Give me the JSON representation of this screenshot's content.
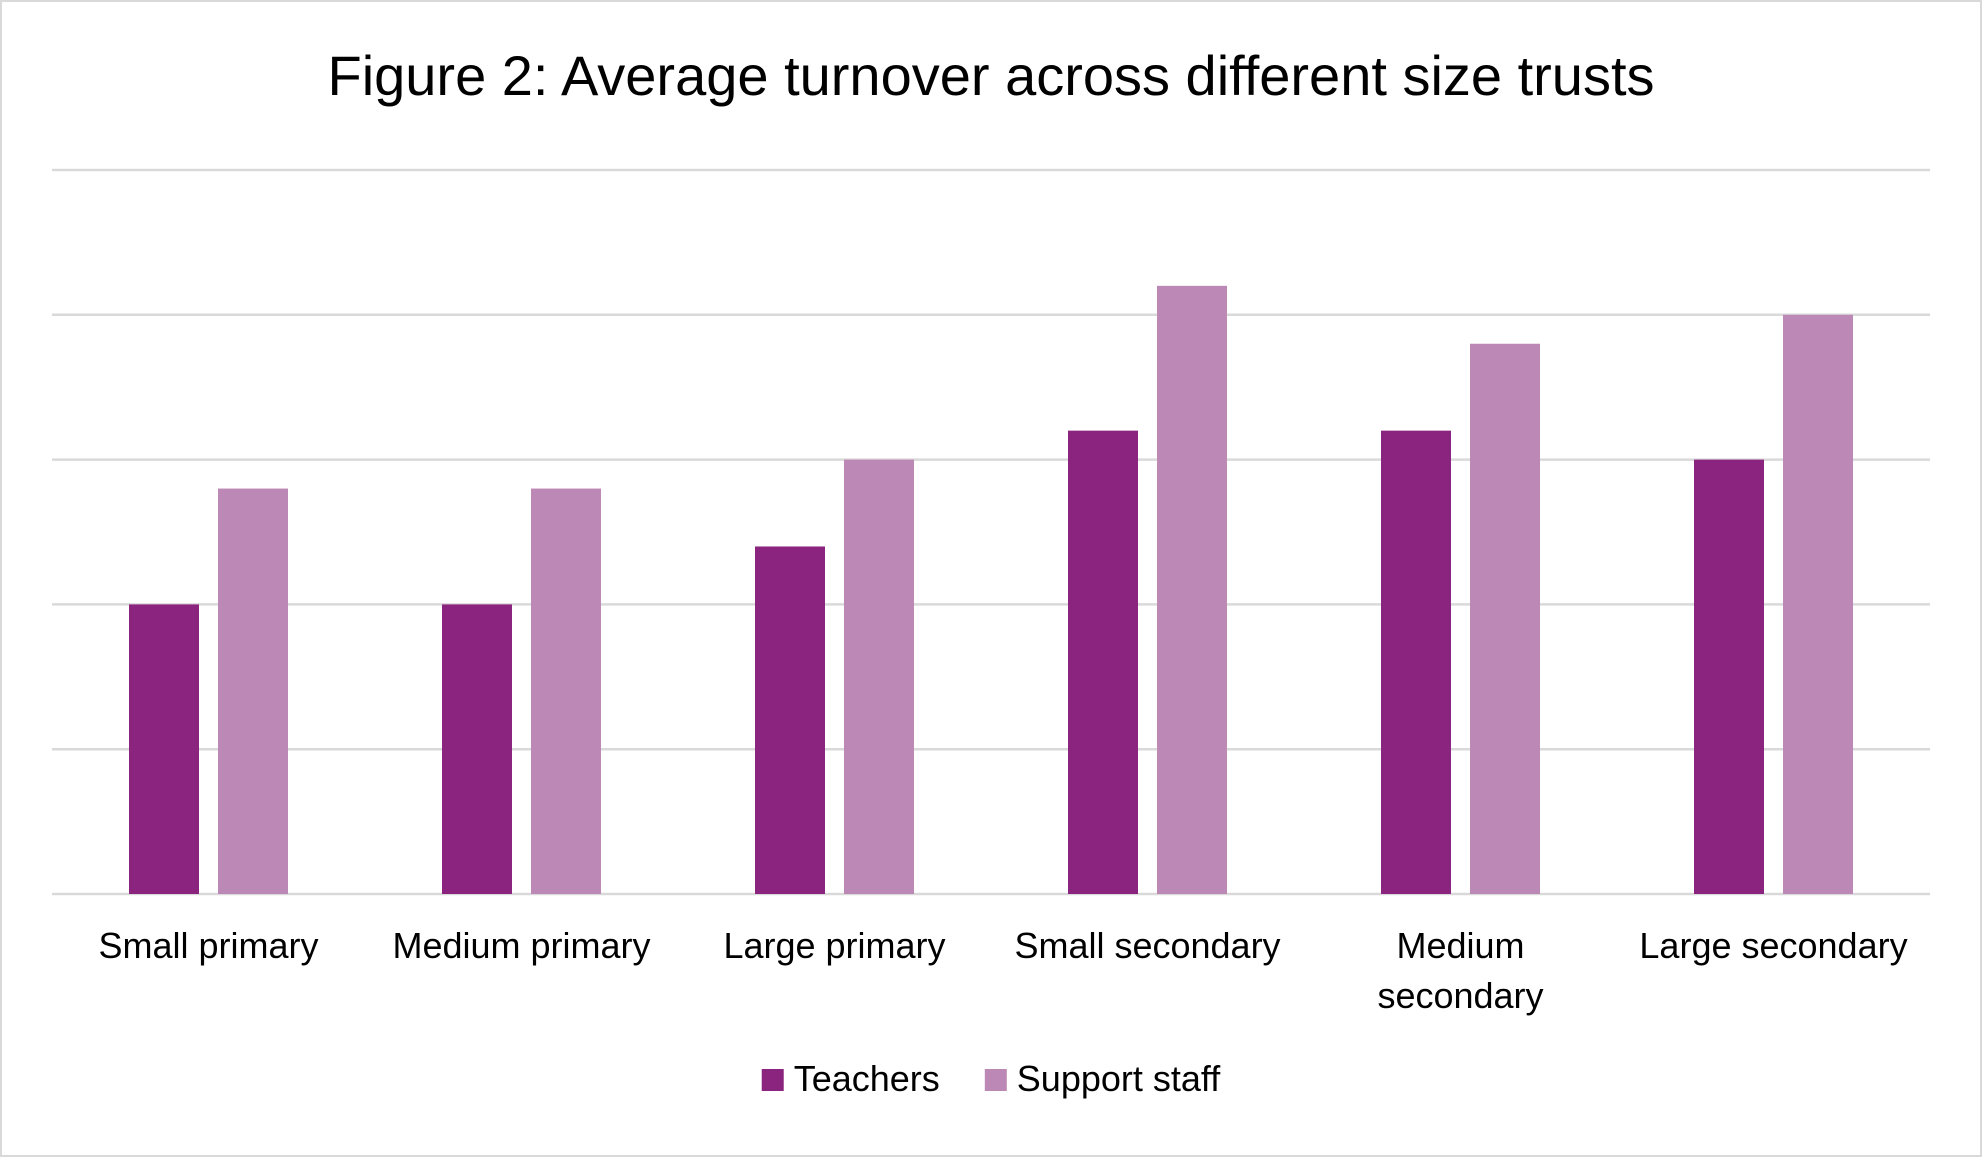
{
  "chart_data": {
    "type": "bar",
    "title": "Figure 2: Average turnover across different size trusts",
    "xlabel": "",
    "ylabel": "",
    "categories": [
      [
        "Small primary"
      ],
      [
        "Medium primary"
      ],
      [
        "Large primary"
      ],
      [
        "Small secondary"
      ],
      [
        "Medium",
        "secondary"
      ],
      [
        "Large secondary"
      ]
    ],
    "series": [
      {
        "name": "Teachers",
        "color": "#8b247e",
        "values": [
          10,
          10,
          12,
          16,
          16,
          15
        ]
      },
      {
        "name": "Support staff",
        "color": "#bc88b5",
        "values": [
          14,
          14,
          15,
          21,
          19,
          20
        ]
      }
    ],
    "ylim": [
      0,
      25
    ],
    "y_gridlines": [
      0,
      5,
      10,
      15,
      20,
      25
    ],
    "y_tick_labels_shown": false,
    "grid": true,
    "legend_position": "bottom"
  }
}
